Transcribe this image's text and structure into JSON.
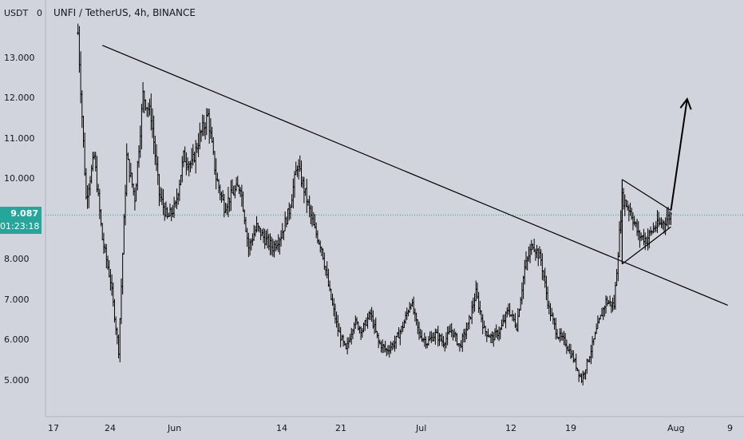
{
  "symbol_title": "UNFI / TetherUS, 4h, BINANCE",
  "price_axis": {
    "currency_label": "USDT",
    "tick_labels": [
      "13.000",
      "12.000",
      "11.000",
      "10.000",
      "8.000",
      "7.000",
      "6.000",
      "5.000"
    ],
    "top_partial_label": "0"
  },
  "last_price": {
    "value": "9.087",
    "countdown": "01:23:18",
    "color": "#26a69a"
  },
  "time_axis": {
    "tick_labels": [
      "17",
      "24",
      "Jun",
      "14",
      "21",
      "Jul",
      "12",
      "19",
      "Aug",
      "9"
    ]
  },
  "colors": {
    "background": "#d1d4dc",
    "bars": "#000000",
    "last_price_line": "#26a69a"
  },
  "chart_data": {
    "type": "ohlc",
    "title": "UNFI / TetherUS, 4h, BINANCE",
    "y_unit": "USDT",
    "ylim": [
      4.2,
      14.3
    ],
    "x_range": [
      "2021-05-15",
      "2021-08-09"
    ],
    "y_ticks": [
      5,
      6,
      7,
      8,
      10,
      11,
      12,
      13
    ],
    "last_price": 9.087,
    "price_path": [
      [
        "2021-05-19",
        13.5
      ],
      [
        "2021-05-20",
        9.5
      ],
      [
        "2021-05-21",
        10.5
      ],
      [
        "2021-05-22",
        8.5
      ],
      [
        "2021-05-23",
        7.5
      ],
      [
        "2021-05-24",
        5.8
      ],
      [
        "2021-05-25",
        10.5
      ],
      [
        "2021-05-26",
        9.5
      ],
      [
        "2021-05-27",
        12.0
      ],
      [
        "2021-05-28",
        11.5
      ],
      [
        "2021-05-29",
        9.6
      ],
      [
        "2021-05-30",
        9.0
      ],
      [
        "2021-05-31",
        9.3
      ],
      [
        "2021-06-01",
        10.5
      ],
      [
        "2021-06-02",
        10.3
      ],
      [
        "2021-06-03",
        11.0
      ],
      [
        "2021-06-04",
        11.5
      ],
      [
        "2021-06-05",
        10.0
      ],
      [
        "2021-06-06",
        9.3
      ],
      [
        "2021-06-07",
        9.6
      ],
      [
        "2021-06-08",
        9.8
      ],
      [
        "2021-06-09",
        8.3
      ],
      [
        "2021-06-10",
        8.8
      ],
      [
        "2021-06-11",
        8.5
      ],
      [
        "2021-06-12",
        8.3
      ],
      [
        "2021-06-13",
        8.6
      ],
      [
        "2021-06-14",
        9.2
      ],
      [
        "2021-06-15",
        10.3
      ],
      [
        "2021-06-16",
        9.6
      ],
      [
        "2021-06-17",
        8.8
      ],
      [
        "2021-06-18",
        8.3
      ],
      [
        "2021-06-19",
        7.2
      ],
      [
        "2021-06-20",
        6.3
      ],
      [
        "2021-06-21",
        5.8
      ],
      [
        "2021-06-22",
        6.5
      ],
      [
        "2021-06-23",
        6.3
      ],
      [
        "2021-06-24",
        6.7
      ],
      [
        "2021-06-25",
        6.0
      ],
      [
        "2021-06-26",
        5.8
      ],
      [
        "2021-06-27",
        6.0
      ],
      [
        "2021-06-28",
        6.4
      ],
      [
        "2021-06-29",
        7.0
      ],
      [
        "2021-06-30",
        6.2
      ],
      [
        "2021-07-01",
        6.0
      ],
      [
        "2021-07-02",
        6.2
      ],
      [
        "2021-07-03",
        6.0
      ],
      [
        "2021-07-04",
        6.3
      ],
      [
        "2021-07-05",
        5.9
      ],
      [
        "2021-07-06",
        6.4
      ],
      [
        "2021-07-07",
        7.2
      ],
      [
        "2021-07-08",
        6.3
      ],
      [
        "2021-07-09",
        6.1
      ],
      [
        "2021-07-10",
        6.3
      ],
      [
        "2021-07-11",
        6.8
      ],
      [
        "2021-07-12",
        6.4
      ],
      [
        "2021-07-13",
        7.8
      ],
      [
        "2021-07-14",
        8.4
      ],
      [
        "2021-07-15",
        8.0
      ],
      [
        "2021-07-16",
        6.8
      ],
      [
        "2021-07-17",
        6.2
      ],
      [
        "2021-07-18",
        6.0
      ],
      [
        "2021-07-19",
        5.6
      ],
      [
        "2021-07-20",
        5.1
      ],
      [
        "2021-07-21",
        5.7
      ],
      [
        "2021-07-22",
        6.4
      ],
      [
        "2021-07-23",
        7.0
      ],
      [
        "2021-07-24",
        6.9
      ],
      [
        "2021-07-25",
        9.5
      ],
      [
        "2021-07-26",
        9.2
      ],
      [
        "2021-07-27",
        8.6
      ],
      [
        "2021-07-28",
        8.5
      ],
      [
        "2021-07-29",
        8.8
      ],
      [
        "2021-07-30",
        8.9
      ],
      [
        "2021-07-31",
        9.087
      ]
    ],
    "annotations": [
      {
        "type": "trendline",
        "from": [
          "2021-05-22",
          13.2
        ],
        "to": [
          "2021-08-07",
          6.9
        ]
      },
      {
        "type": "triangle-upper",
        "from": [
          "2021-07-25",
          9.95
        ],
        "to": [
          "2021-07-31",
          9.2
        ]
      },
      {
        "type": "triangle-lower",
        "from": [
          "2021-07-25",
          7.9
        ],
        "to": [
          "2021-07-31",
          8.8
        ]
      },
      {
        "type": "arrow",
        "from": [
          "2021-07-31",
          9.2
        ],
        "to": [
          "2021-08-02",
          11.9
        ]
      }
    ]
  }
}
